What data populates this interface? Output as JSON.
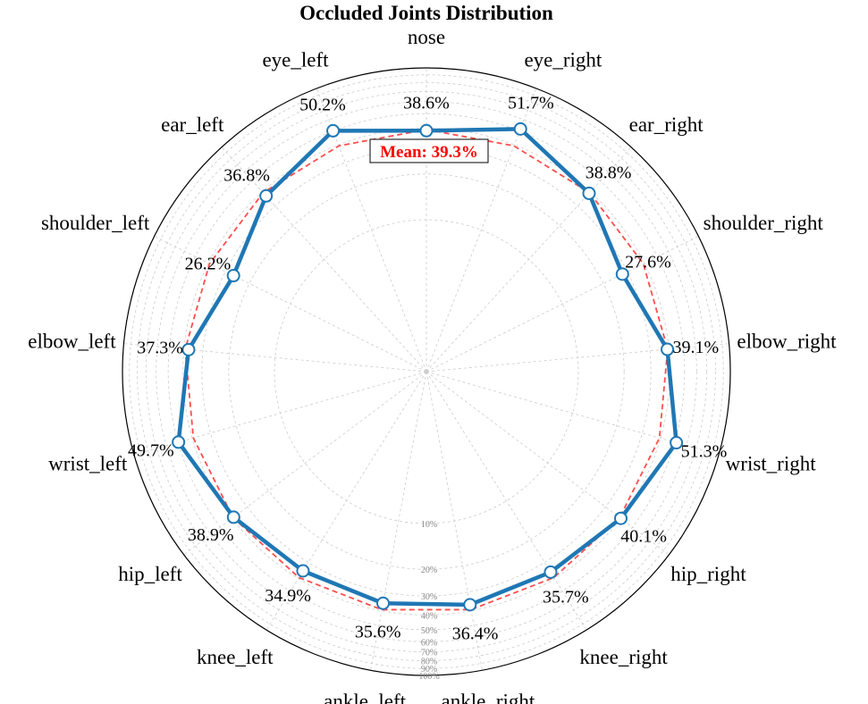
{
  "chart_data": {
    "type": "radar",
    "title": "Occluded Joints Distribution",
    "categories": [
      "nose",
      "eye_right",
      "ear_right",
      "shoulder_right",
      "elbow_right",
      "wrist_right",
      "hip_right",
      "knee_right",
      "ankle_right",
      "ankle_left",
      "knee_left",
      "hip_left",
      "wrist_left",
      "elbow_left",
      "shoulder_left",
      "ear_left",
      "eye_left"
    ],
    "series": [
      {
        "values": [
          38.6,
          51.7,
          38.8,
          27.6,
          39.1,
          51.3,
          40.1,
          35.7,
          36.4,
          35.6,
          34.9,
          38.9,
          49.7,
          37.3,
          26.2,
          36.8,
          50.2
        ],
        "value_labels": [
          "38.6%",
          "51.7%",
          "38.8%",
          "27.6%",
          "39.1%",
          "51.3%",
          "40.1%",
          "35.7%",
          "36.4%",
          "35.6%",
          "34.9%",
          "38.9%",
          "49.7%",
          "37.3%",
          "26.2%",
          "36.8%",
          "50.2%"
        ]
      }
    ],
    "mean": {
      "value": 39.3,
      "label": "Mean: 39.3%"
    },
    "radial_scale": "log",
    "rlim": [
      1,
      100
    ],
    "radial_ticks": [
      {
        "value": 10,
        "label": "10%"
      },
      {
        "value": 20,
        "label": "20%"
      },
      {
        "value": 30,
        "label": "30%"
      },
      {
        "value": 40,
        "label": "40%"
      },
      {
        "value": 50,
        "label": "50%"
      },
      {
        "value": 60,
        "label": "60%"
      },
      {
        "value": 70,
        "label": "70%"
      },
      {
        "value": 80,
        "label": "80%"
      },
      {
        "value": 90,
        "label": "90%"
      },
      {
        "value": 100,
        "label": "100%"
      }
    ],
    "grid": true,
    "colors": {
      "series": "#1f77b4",
      "mean": "#ff4d4d",
      "mean_text": "#ff0000",
      "grid": "#cccccc",
      "tick": "#888888"
    }
  }
}
